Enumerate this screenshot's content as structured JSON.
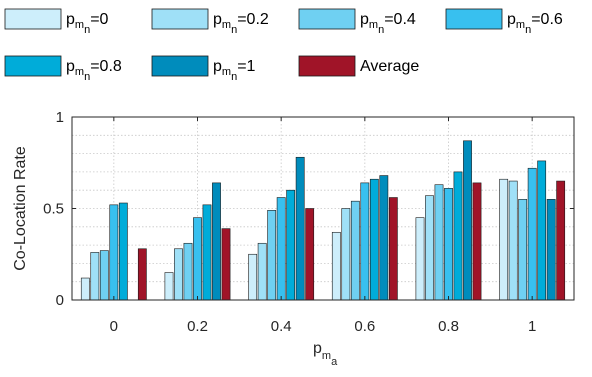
{
  "chart_data": {
    "type": "bar",
    "xlabel": {
      "base": "p",
      "sub": "m",
      "subsub": "a"
    },
    "ylabel": "Co-Location Rate",
    "categories": [
      "0",
      "0.2",
      "0.4",
      "0.6",
      "0.8",
      "1"
    ],
    "ylim": [
      0,
      1
    ],
    "yticks": [
      "0",
      "0.5",
      "1"
    ],
    "grid": true,
    "legend_position": "top",
    "series": [
      {
        "name": {
          "base": "p",
          "sub": "m",
          "subsub": "n",
          "value": "=0"
        },
        "color": "#cdeefb",
        "values": [
          0.12,
          0.15,
          0.25,
          0.37,
          0.45,
          0.66
        ]
      },
      {
        "name": {
          "base": "p",
          "sub": "m",
          "subsub": "n",
          "value": "=0.2"
        },
        "color": "#9fe0f7",
        "values": [
          0.26,
          0.28,
          0.31,
          0.5,
          0.57,
          0.65
        ]
      },
      {
        "name": {
          "base": "p",
          "sub": "m",
          "subsub": "n",
          "value": "=0.4"
        },
        "color": "#6fd0f2",
        "values": [
          0.27,
          0.31,
          0.49,
          0.54,
          0.63,
          0.55
        ]
      },
      {
        "name": {
          "base": "p",
          "sub": "m",
          "subsub": "n",
          "value": "=0.6"
        },
        "color": "#38c0ef",
        "values": [
          0.52,
          0.45,
          0.56,
          0.64,
          0.61,
          0.72
        ]
      },
      {
        "name": {
          "base": "p",
          "sub": "m",
          "subsub": "n",
          "value": "=0.8"
        },
        "color": "#00acd9",
        "values": [
          0.53,
          0.52,
          0.6,
          0.66,
          0.7,
          0.76
        ]
      },
      {
        "name": {
          "base": "p",
          "sub": "m",
          "subsub": "n",
          "value": "=1"
        },
        "color": "#008cbc",
        "values": [
          0.0,
          0.64,
          0.78,
          0.68,
          0.87,
          0.55
        ]
      },
      {
        "name": {
          "label": "Average"
        },
        "color": "#a01428",
        "values": [
          0.28,
          0.39,
          0.5,
          0.56,
          0.64,
          0.65
        ]
      }
    ]
  }
}
